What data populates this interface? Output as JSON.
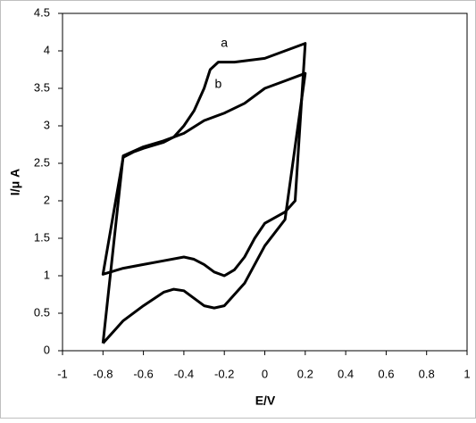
{
  "chart_data": {
    "type": "line",
    "xlabel": "E/V",
    "ylabel": "I/μ A",
    "xlim": [
      -1,
      1
    ],
    "xticks": [
      -1,
      -0.8,
      -0.6,
      -0.4,
      -0.2,
      0,
      0.2,
      0.4,
      0.6,
      0.8,
      1
    ],
    "ylim": [
      0,
      4.5
    ],
    "yticks": [
      0,
      0.5,
      1,
      1.5,
      2,
      2.5,
      3,
      3.5,
      4,
      4.5
    ],
    "grid": false,
    "series": [
      {
        "name": "a",
        "color": "#000000",
        "x": [
          -0.7,
          -0.65,
          -0.6,
          -0.5,
          -0.45,
          -0.4,
          -0.35,
          -0.3,
          -0.27,
          -0.23,
          -0.15,
          0,
          0.1,
          0.2,
          0.15,
          0.1,
          0,
          -0.05,
          -0.1,
          -0.15,
          -0.2,
          -0.25,
          -0.3,
          -0.35,
          -0.4,
          -0.5,
          -0.6,
          -0.7,
          -0.8,
          -0.7
        ],
        "values": [
          2.58,
          2.65,
          2.7,
          2.78,
          2.85,
          3.0,
          3.2,
          3.5,
          3.75,
          3.85,
          3.85,
          3.9,
          4.0,
          4.1,
          2.0,
          1.85,
          1.7,
          1.5,
          1.25,
          1.08,
          1.0,
          1.05,
          1.15,
          1.22,
          1.25,
          1.2,
          1.15,
          1.1,
          1.02,
          2.58
        ]
      },
      {
        "name": "b",
        "color": "#000000",
        "x": [
          -0.8,
          -0.7,
          -0.6,
          -0.5,
          -0.45,
          -0.4,
          -0.35,
          -0.3,
          -0.25,
          -0.2,
          -0.1,
          0,
          0.1,
          0.2,
          0.1,
          0,
          -0.1,
          -0.2,
          -0.3,
          -0.4,
          -0.5,
          -0.6,
          -0.7,
          -0.8
        ],
        "values": [
          0.1,
          0.4,
          0.6,
          0.78,
          0.82,
          0.8,
          0.7,
          0.6,
          0.57,
          0.6,
          0.9,
          1.4,
          1.75,
          3.7,
          3.6,
          3.5,
          3.3,
          3.17,
          3.07,
          2.9,
          2.8,
          2.72,
          2.6,
          0.1
        ]
      }
    ]
  }
}
